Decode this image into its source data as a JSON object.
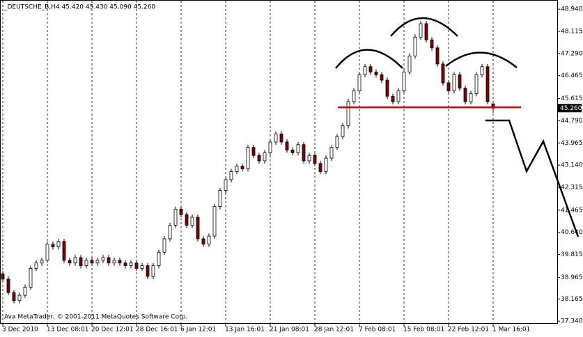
{
  "chart_data": {
    "type": "candlestick",
    "title": "_DEUTSCHE_B,H4  45.420 45.430 45.090 45.260",
    "footer": "Ava MetaTrader, © 2001-2011 MetaQuotes Software Corp.",
    "categories": [
      "3 Dec 2010",
      null,
      null,
      null,
      null,
      null,
      null,
      null,
      "13 Dec 08:01",
      null,
      null,
      null,
      null,
      null,
      null,
      null,
      "20 Dec 12:01",
      null,
      null,
      null,
      null,
      null,
      null,
      null,
      "28 Dec 16:01",
      null,
      null,
      null,
      null,
      null,
      null,
      null,
      "6 Jan 12:01",
      null,
      null,
      null,
      null,
      null,
      null,
      null,
      "13 Jan 16:01",
      null,
      null,
      null,
      null,
      null,
      null,
      null,
      "21 Jan 08:01",
      null,
      null,
      null,
      null,
      null,
      null,
      null,
      "28 Jan 12:01",
      null,
      null,
      null,
      null,
      null,
      null,
      null,
      "7 Feb 08:01",
      null,
      null,
      null,
      null,
      null,
      null,
      null,
      "15 Feb 08:01",
      null,
      null,
      null,
      null,
      null,
      null,
      null,
      "22 Feb 12:01",
      null,
      null,
      null,
      null,
      null,
      null,
      null,
      "1 Mar 16:01"
    ],
    "open": [
      39.1,
      38.9,
      38.4,
      38.1,
      38.3,
      38.6,
      39.3,
      39.5,
      39.6,
      40.2,
      40.1,
      40.3,
      39.6,
      39.5,
      39.7,
      39.4,
      39.6,
      39.5,
      39.6,
      39.7,
      39.5,
      39.6,
      39.5,
      39.4,
      39.5,
      39.3,
      39.4,
      39.0,
      39.4,
      39.9,
      40.4,
      40.9,
      41.5,
      41.3,
      40.9,
      41.2,
      40.4,
      40.2,
      40.5,
      41.6,
      42.2,
      42.6,
      42.9,
      43.1,
      43.0,
      43.8,
      43.5,
      43.3,
      43.6,
      44.0,
      44.3,
      44.0,
      43.7,
      43.6,
      43.9,
      43.3,
      43.5,
      43.2,
      42.9,
      43.4,
      43.8,
      44.2,
      44.6,
      45.5,
      45.9,
      46.5,
      46.8,
      46.6,
      46.5,
      46.3,
      45.7,
      45.5,
      45.9,
      46.6,
      47.2,
      47.9,
      48.4,
      47.8,
      47.5,
      46.9,
      46.2,
      45.9,
      46.5,
      46.0,
      45.5,
      45.8,
      46.5,
      46.8,
      45.42
    ],
    "high": [
      39.2,
      39.0,
      38.5,
      38.4,
      38.7,
      39.4,
      39.6,
      39.7,
      40.3,
      40.3,
      40.4,
      40.4,
      39.7,
      39.8,
      39.8,
      39.7,
      39.7,
      39.7,
      39.8,
      39.8,
      39.7,
      39.7,
      39.6,
      39.6,
      39.6,
      39.5,
      39.5,
      39.5,
      40.0,
      40.5,
      41.0,
      41.6,
      41.6,
      41.4,
      41.3,
      41.3,
      40.5,
      40.6,
      41.7,
      42.3,
      42.7,
      43.0,
      43.2,
      43.2,
      43.9,
      43.9,
      43.6,
      43.7,
      44.1,
      44.4,
      44.4,
      44.1,
      43.8,
      44.0,
      44.0,
      43.6,
      43.6,
      43.3,
      43.5,
      43.9,
      44.3,
      44.7,
      45.6,
      46.0,
      46.6,
      46.9,
      46.9,
      46.7,
      46.6,
      46.4,
      45.8,
      46.0,
      46.7,
      47.3,
      48.0,
      48.5,
      48.5,
      47.9,
      47.6,
      47.0,
      46.3,
      46.6,
      46.6,
      46.1,
      45.9,
      46.6,
      46.9,
      46.9,
      45.43
    ],
    "low": [
      38.8,
      38.3,
      38.0,
      38.0,
      38.2,
      38.5,
      39.2,
      39.4,
      39.5,
      40.0,
      40.0,
      39.5,
      39.4,
      39.4,
      39.3,
      39.3,
      39.4,
      39.4,
      39.5,
      39.4,
      39.4,
      39.4,
      39.3,
      39.3,
      39.2,
      39.2,
      38.9,
      38.9,
      39.3,
      39.8,
      40.3,
      40.8,
      41.2,
      40.8,
      40.8,
      40.3,
      40.1,
      40.1,
      40.4,
      41.5,
      42.1,
      42.5,
      42.8,
      42.9,
      42.9,
      43.4,
      43.2,
      43.2,
      43.5,
      43.9,
      43.9,
      43.6,
      43.5,
      43.5,
      43.2,
      43.2,
      43.1,
      42.8,
      42.8,
      43.3,
      43.7,
      44.1,
      44.5,
      45.4,
      45.8,
      46.4,
      46.5,
      46.4,
      46.2,
      45.6,
      45.4,
      45.4,
      45.8,
      46.5,
      47.1,
      47.8,
      47.7,
      47.4,
      46.8,
      46.1,
      45.8,
      45.8,
      45.9,
      45.4,
      45.4,
      45.7,
      46.4,
      45.4,
      45.09
    ],
    "close": [
      38.9,
      38.4,
      38.1,
      38.3,
      38.6,
      39.3,
      39.5,
      39.6,
      40.2,
      40.1,
      40.3,
      39.6,
      39.5,
      39.7,
      39.4,
      39.6,
      39.5,
      39.6,
      39.7,
      39.5,
      39.6,
      39.5,
      39.4,
      39.5,
      39.3,
      39.4,
      39.0,
      39.4,
      39.9,
      40.4,
      40.9,
      41.5,
      41.3,
      40.9,
      41.2,
      40.4,
      40.2,
      40.5,
      41.6,
      42.2,
      42.6,
      42.9,
      43.1,
      43.0,
      43.8,
      43.5,
      43.3,
      43.6,
      44.0,
      44.3,
      44.0,
      43.7,
      43.6,
      43.9,
      43.3,
      43.5,
      43.2,
      42.9,
      43.4,
      43.8,
      44.2,
      44.6,
      45.5,
      45.9,
      46.5,
      46.8,
      46.6,
      46.5,
      46.3,
      45.7,
      45.5,
      45.9,
      46.6,
      47.2,
      47.9,
      48.4,
      47.8,
      47.5,
      46.9,
      46.2,
      45.9,
      46.5,
      46.0,
      45.5,
      45.8,
      46.5,
      46.8,
      45.5,
      45.26
    ],
    "up_color": "#ffffff",
    "down_color": "#800000",
    "wick_color": "#000000",
    "ylim": [
      37.24,
      49.28
    ],
    "yticks": [
      {
        "value": 48.94,
        "label": "48.940"
      },
      {
        "value": 48.115,
        "label": "48.115"
      },
      {
        "value": 47.29,
        "label": "47.290"
      },
      {
        "value": 46.465,
        "label": "46.465"
      },
      {
        "value": 45.615,
        "label": "45.615"
      },
      {
        "value": 44.79,
        "label": "44.790"
      },
      {
        "value": 43.965,
        "label": "43.965"
      },
      {
        "value": 43.14,
        "label": "43.140"
      },
      {
        "value": 42.315,
        "label": "42.315"
      },
      {
        "value": 41.465,
        "label": "41.465"
      },
      {
        "value": 40.64,
        "label": "40.640"
      },
      {
        "value": 39.815,
        "label": "39.815"
      },
      {
        "value": 38.965,
        "label": "38.965"
      },
      {
        "value": 38.165,
        "label": "38.165"
      },
      {
        "value": 37.34,
        "label": "37.340"
      }
    ],
    "current_price": {
      "value": 45.26,
      "label": "45.260"
    },
    "grid": true
  }
}
